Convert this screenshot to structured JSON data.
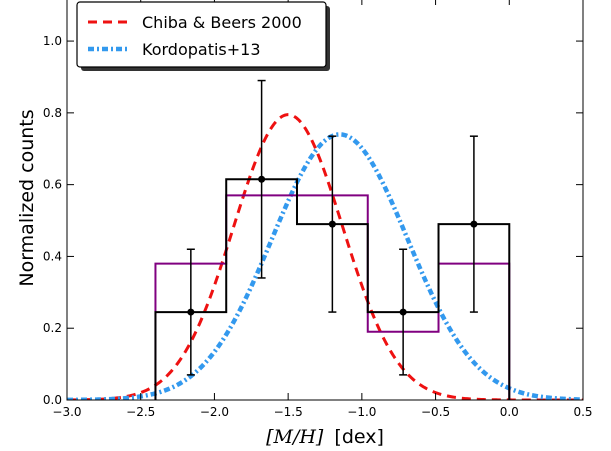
{
  "chart_data": {
    "type": "line",
    "xlabel_math": "[M/H]",
    "xlabel_unit": "[dex]",
    "ylabel": "Normalized counts",
    "xlim": [
      -3.0,
      0.5
    ],
    "ylim": [
      0.0,
      1.12
    ],
    "xticks": [
      -3.0,
      -2.5,
      -2.0,
      -1.5,
      -1.0,
      -0.5,
      0.0,
      0.5
    ],
    "xtick_labels": [
      "−3.0",
      "−2.5",
      "−2.0",
      "−1.5",
      "−1.0",
      "−0.5",
      "0.0",
      "0.5"
    ],
    "yticks": [
      0.0,
      0.2,
      0.4,
      0.6,
      0.8,
      1.0
    ],
    "ytick_labels": [
      "0.0",
      "0.2",
      "0.4",
      "0.6",
      "0.8",
      "1.0"
    ],
    "legend_position": "top-left",
    "series": [
      {
        "name": "Chiba & Beers 2000",
        "kind": "gaussian",
        "mean": -1.5,
        "sigma": 0.37,
        "amplitude": 0.795,
        "color": "#ee1111",
        "style": "dashed"
      },
      {
        "name": "Kordopatis+13",
        "kind": "gaussian",
        "mean": -1.15,
        "sigma": 0.46,
        "amplitude": 0.74,
        "color": "#3399ee",
        "style": "dash-dot"
      }
    ],
    "histograms": [
      {
        "label": "black-histogram",
        "color": "#000000",
        "edges": [
          -2.4,
          -1.92,
          -1.44,
          -0.96,
          -0.48,
          0.0
        ],
        "values": [
          0.245,
          0.615,
          0.49,
          0.245,
          0.49
        ]
      },
      {
        "label": "purple-histogram",
        "color": "#800080",
        "edges": [
          -2.4,
          -1.92,
          -1.44,
          -0.96,
          -0.48,
          0.0
        ],
        "values": [
          0.38,
          0.57,
          0.57,
          0.19,
          0.38
        ]
      }
    ],
    "error_points": {
      "x": [
        -2.16,
        -1.68,
        -1.2,
        -0.72,
        -0.24
      ],
      "y": [
        0.245,
        0.615,
        0.49,
        0.245,
        0.49
      ],
      "yerr_low": [
        0.175,
        0.275,
        0.245,
        0.175,
        0.245
      ],
      "yerr_high": [
        0.175,
        0.275,
        0.245,
        0.175,
        0.245
      ],
      "color": "#000000"
    }
  }
}
